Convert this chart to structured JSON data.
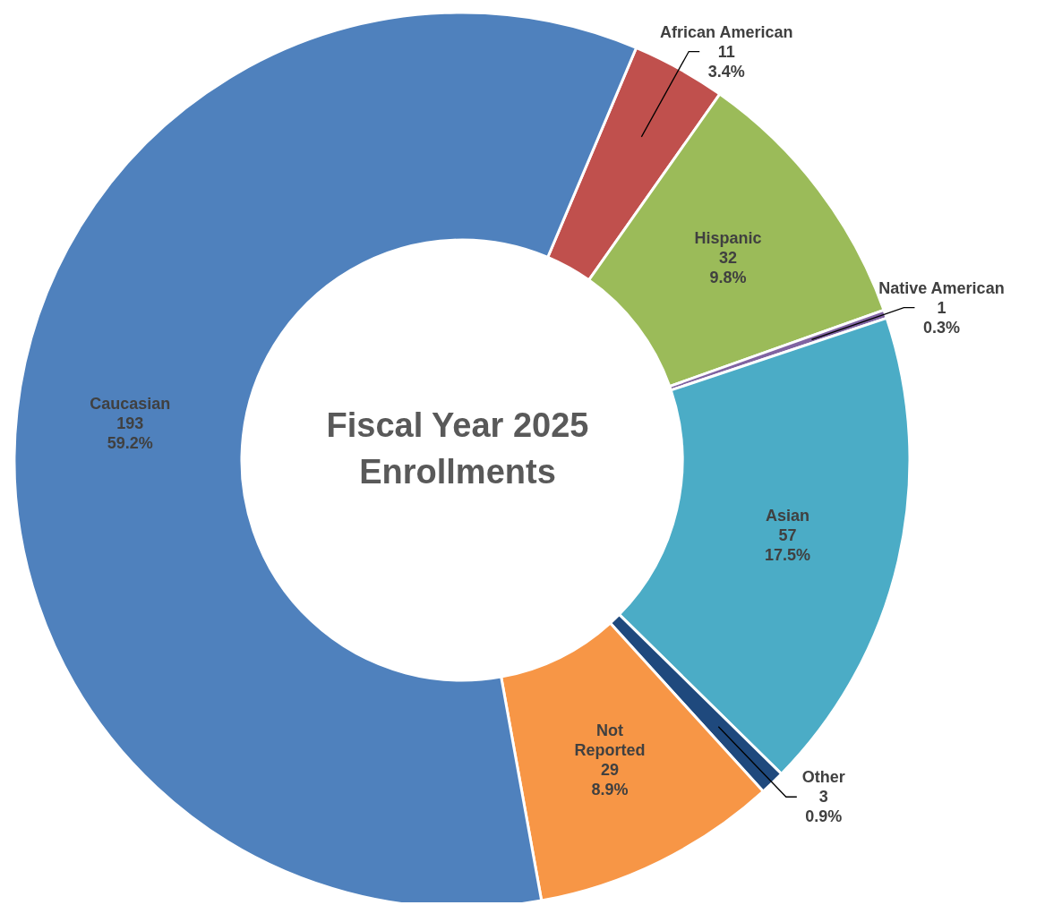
{
  "chart_data": {
    "type": "donut",
    "title": "Fiscal Year 2025\nEnrollments",
    "categories": [
      "African American",
      "Hispanic",
      "Native American",
      "Asian",
      "Other",
      "Not Reported",
      "Caucasian"
    ],
    "values": [
      3.4,
      9.8,
      0.3,
      17.5,
      0.9,
      8.9,
      59.2
    ],
    "colors": [
      "#c0504d",
      "#9bbb59",
      "#8064a2",
      "#4bacc6",
      "#1f497d",
      "#f79646",
      "#4f81bd"
    ],
    "value_labels": [
      "11\n3.4%",
      "32\n9.8%",
      "1\n0.3%",
      "57\n17.5%",
      "3\n0.9%",
      "29\n8.9%",
      "193\n59.2%"
    ]
  }
}
